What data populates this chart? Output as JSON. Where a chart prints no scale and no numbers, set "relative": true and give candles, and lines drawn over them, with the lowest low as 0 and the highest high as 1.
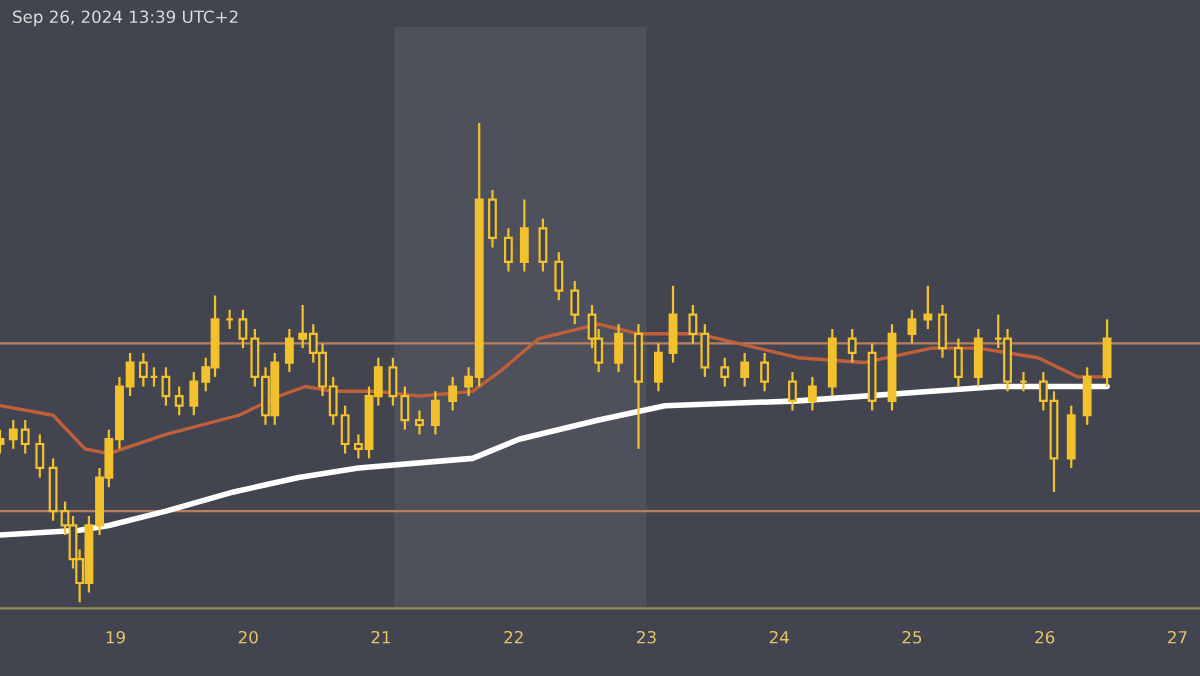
{
  "chart_data": {
    "type": "candlestick",
    "relative": true,
    "annotations": [
      "Sep 26, 2024 13:39 UTC+2"
    ],
    "x": [
      18.13,
      18.23,
      18.32,
      18.43,
      18.53,
      18.62,
      18.68,
      18.73,
      18.8,
      18.88,
      18.95,
      19.03,
      19.11,
      19.21,
      19.29,
      19.38,
      19.48,
      19.59,
      19.68,
      19.75,
      19.86,
      19.96,
      20.05,
      20.13,
      20.2,
      20.31,
      20.41,
      20.49,
      20.56,
      20.64,
      20.73,
      20.83,
      20.91,
      20.98,
      21.09,
      21.18,
      21.29,
      21.41,
      21.54,
      21.66,
      21.74,
      21.84,
      21.96,
      22.08,
      22.22,
      22.34,
      22.46,
      22.59,
      22.64,
      22.79,
      22.94,
      23.09,
      23.2,
      23.35,
      23.44,
      23.59,
      23.74,
      23.89,
      24.1,
      24.25,
      24.4,
      24.55,
      24.7,
      24.85,
      25.0,
      25.12,
      25.23,
      25.35,
      25.5,
      25.65,
      25.72,
      25.84,
      25.99,
      26.07,
      26.2,
      26.32,
      26.47
    ],
    "ohlc": [
      [
        0.33,
        0.36,
        0.31,
        0.34
      ],
      [
        0.34,
        0.38,
        0.32,
        0.36
      ],
      [
        0.36,
        0.38,
        0.31,
        0.33
      ],
      [
        0.33,
        0.35,
        0.26,
        0.28
      ],
      [
        0.28,
        0.3,
        0.17,
        0.19
      ],
      [
        0.19,
        0.21,
        0.14,
        0.16
      ],
      [
        0.16,
        0.18,
        0.07,
        0.09
      ],
      [
        0.09,
        0.11,
        0.0,
        0.04
      ],
      [
        0.04,
        0.18,
        0.02,
        0.16
      ],
      [
        0.16,
        0.28,
        0.14,
        0.26
      ],
      [
        0.26,
        0.36,
        0.24,
        0.34
      ],
      [
        0.34,
        0.47,
        0.32,
        0.45
      ],
      [
        0.45,
        0.52,
        0.43,
        0.5
      ],
      [
        0.5,
        0.52,
        0.45,
        0.47
      ],
      [
        0.47,
        0.49,
        0.45,
        0.47
      ],
      [
        0.47,
        0.49,
        0.41,
        0.43
      ],
      [
        0.43,
        0.45,
        0.39,
        0.41
      ],
      [
        0.41,
        0.48,
        0.39,
        0.46
      ],
      [
        0.46,
        0.51,
        0.44,
        0.49
      ],
      [
        0.49,
        0.64,
        0.47,
        0.59
      ],
      [
        0.59,
        0.61,
        0.57,
        0.59
      ],
      [
        0.59,
        0.61,
        0.53,
        0.55
      ],
      [
        0.55,
        0.57,
        0.45,
        0.47
      ],
      [
        0.47,
        0.49,
        0.37,
        0.39
      ],
      [
        0.39,
        0.52,
        0.37,
        0.5
      ],
      [
        0.5,
        0.57,
        0.48,
        0.55
      ],
      [
        0.55,
        0.62,
        0.53,
        0.56
      ],
      [
        0.56,
        0.58,
        0.5,
        0.52
      ],
      [
        0.52,
        0.54,
        0.43,
        0.45
      ],
      [
        0.45,
        0.47,
        0.37,
        0.39
      ],
      [
        0.39,
        0.41,
        0.31,
        0.33
      ],
      [
        0.33,
        0.35,
        0.3,
        0.32
      ],
      [
        0.32,
        0.45,
        0.3,
        0.43
      ],
      [
        0.43,
        0.51,
        0.41,
        0.49
      ],
      [
        0.49,
        0.51,
        0.41,
        0.43
      ],
      [
        0.43,
        0.45,
        0.36,
        0.38
      ],
      [
        0.38,
        0.4,
        0.35,
        0.37
      ],
      [
        0.37,
        0.44,
        0.35,
        0.42
      ],
      [
        0.42,
        0.47,
        0.4,
        0.45
      ],
      [
        0.45,
        0.49,
        0.43,
        0.47
      ],
      [
        0.47,
        1.0,
        0.45,
        0.84
      ],
      [
        0.84,
        0.86,
        0.74,
        0.76
      ],
      [
        0.76,
        0.78,
        0.69,
        0.71
      ],
      [
        0.71,
        0.84,
        0.69,
        0.78
      ],
      [
        0.78,
        0.8,
        0.69,
        0.71
      ],
      [
        0.71,
        0.73,
        0.63,
        0.65
      ],
      [
        0.65,
        0.67,
        0.58,
        0.6
      ],
      [
        0.6,
        0.62,
        0.53,
        0.55
      ],
      [
        0.55,
        0.57,
        0.48,
        0.5
      ],
      [
        0.5,
        0.58,
        0.48,
        0.56
      ],
      [
        0.56,
        0.58,
        0.32,
        0.46
      ],
      [
        0.46,
        0.54,
        0.44,
        0.52
      ],
      [
        0.52,
        0.66,
        0.5,
        0.6
      ],
      [
        0.6,
        0.62,
        0.54,
        0.56
      ],
      [
        0.56,
        0.58,
        0.47,
        0.49
      ],
      [
        0.49,
        0.51,
        0.45,
        0.47
      ],
      [
        0.47,
        0.52,
        0.45,
        0.5
      ],
      [
        0.5,
        0.52,
        0.44,
        0.46
      ],
      [
        0.46,
        0.48,
        0.4,
        0.42
      ],
      [
        0.42,
        0.47,
        0.4,
        0.45
      ],
      [
        0.45,
        0.57,
        0.43,
        0.55
      ],
      [
        0.55,
        0.57,
        0.5,
        0.52
      ],
      [
        0.52,
        0.54,
        0.4,
        0.42
      ],
      [
        0.42,
        0.58,
        0.4,
        0.56
      ],
      [
        0.56,
        0.61,
        0.54,
        0.59
      ],
      [
        0.59,
        0.66,
        0.57,
        0.6
      ],
      [
        0.6,
        0.62,
        0.51,
        0.53
      ],
      [
        0.53,
        0.55,
        0.45,
        0.47
      ],
      [
        0.47,
        0.57,
        0.45,
        0.55
      ],
      [
        0.55,
        0.6,
        0.53,
        0.55
      ],
      [
        0.55,
        0.57,
        0.44,
        0.46
      ],
      [
        0.46,
        0.48,
        0.44,
        0.46
      ],
      [
        0.46,
        0.48,
        0.4,
        0.42
      ],
      [
        0.42,
        0.44,
        0.23,
        0.3
      ],
      [
        0.3,
        0.41,
        0.28,
        0.39
      ],
      [
        0.39,
        0.49,
        0.37,
        0.47
      ],
      [
        0.47,
        0.59,
        0.45,
        0.55
      ]
    ],
    "color": "#f2c12e",
    "series": [
      {
        "type": "line",
        "color": "#c0603a",
        "x": [
          18.13,
          18.53,
          18.77,
          18.95,
          19.38,
          19.93,
          20.23,
          20.43,
          20.64,
          20.98,
          21.29,
          21.69,
          21.89,
          22.19,
          22.49,
          22.64,
          22.94,
          23.39,
          23.69,
          24.14,
          24.64,
          25.15,
          25.5,
          25.95,
          26.25,
          26.47
        ],
        "values": [
          0.41,
          0.39,
          0.32,
          0.31,
          0.35,
          0.39,
          0.43,
          0.45,
          0.44,
          0.44,
          0.43,
          0.44,
          0.48,
          0.55,
          0.57,
          0.58,
          0.56,
          0.56,
          0.54,
          0.51,
          0.5,
          0.53,
          0.53,
          0.51,
          0.47,
          0.47
        ]
      },
      {
        "type": "line",
        "color": "#ffffff",
        "x": [
          18.13,
          18.73,
          18.95,
          19.38,
          19.89,
          20.38,
          20.83,
          21.69,
          22.04,
          22.64,
          23.14,
          24.14,
          25.15,
          25.65,
          26.47
        ],
        "values": [
          0.14,
          0.15,
          0.16,
          0.19,
          0.23,
          0.26,
          0.28,
          0.3,
          0.34,
          0.38,
          0.41,
          0.42,
          0.44,
          0.45,
          0.45
        ]
      }
    ],
    "ref_lines": [
      {
        "axis": "y",
        "value": 0.54,
        "color": "#b9805f"
      },
      {
        "axis": "y",
        "value": 0.19,
        "color": "#b9805f"
      }
    ],
    "bands": [
      {
        "axis": "x",
        "from": 21.1,
        "to": 23.0,
        "color": "#4e515c"
      }
    ],
    "xlim": [
      18.13,
      27.17
    ],
    "xticks": [
      19,
      20,
      21,
      22,
      23,
      24,
      25,
      26,
      27
    ],
    "grid": false,
    "legend": false
  }
}
